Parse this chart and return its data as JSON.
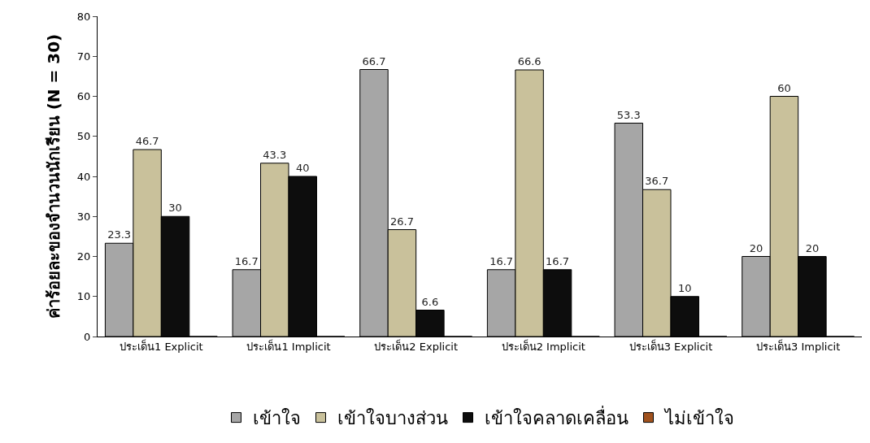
{
  "chart_data": {
    "type": "bar",
    "ylabel": "ค่าร้อยละของจำนวนนักเรียน (N = 30)",
    "categories": [
      "ประเด็น1 Explicit",
      "ประเด็น1 Implicit",
      "ประเด็น2 Explicit",
      "ประเด็น2 Implicit",
      "ประเด็น3 Explicit",
      "ประเด็น3 Implicit"
    ],
    "series": [
      {
        "name": "เข้าใจ",
        "color": "#a6a6a6",
        "values": [
          23.3,
          16.7,
          66.7,
          16.7,
          53.3,
          20
        ],
        "value_labels": [
          "23.3",
          "16.7",
          "66.7",
          "16.7",
          "53.3",
          "20"
        ]
      },
      {
        "name": "เข้าใจบางส่วน",
        "color": "#c9c19b",
        "values": [
          46.7,
          43.3,
          26.7,
          66.6,
          36.7,
          60
        ],
        "value_labels": [
          "46.7",
          "43.3",
          "26.7",
          "66.6",
          "36.7",
          "60"
        ]
      },
      {
        "name": "เข้าใจคลาดเคลื่อน",
        "color": "#0d0d0d",
        "values": [
          30,
          40,
          6.6,
          16.7,
          10,
          20
        ],
        "value_labels": [
          "30",
          "40",
          "6.6",
          "16.7",
          "10",
          "20"
        ]
      },
      {
        "name": "ไม่เข้าใจ",
        "color": "#a0521e",
        "values": [
          0,
          0,
          0,
          0,
          0,
          0
        ]
      }
    ],
    "ylim": [
      0,
      80
    ],
    "yticks": [
      0,
      10,
      20,
      30,
      40,
      50,
      60,
      70,
      80
    ],
    "legend": "bottom"
  }
}
